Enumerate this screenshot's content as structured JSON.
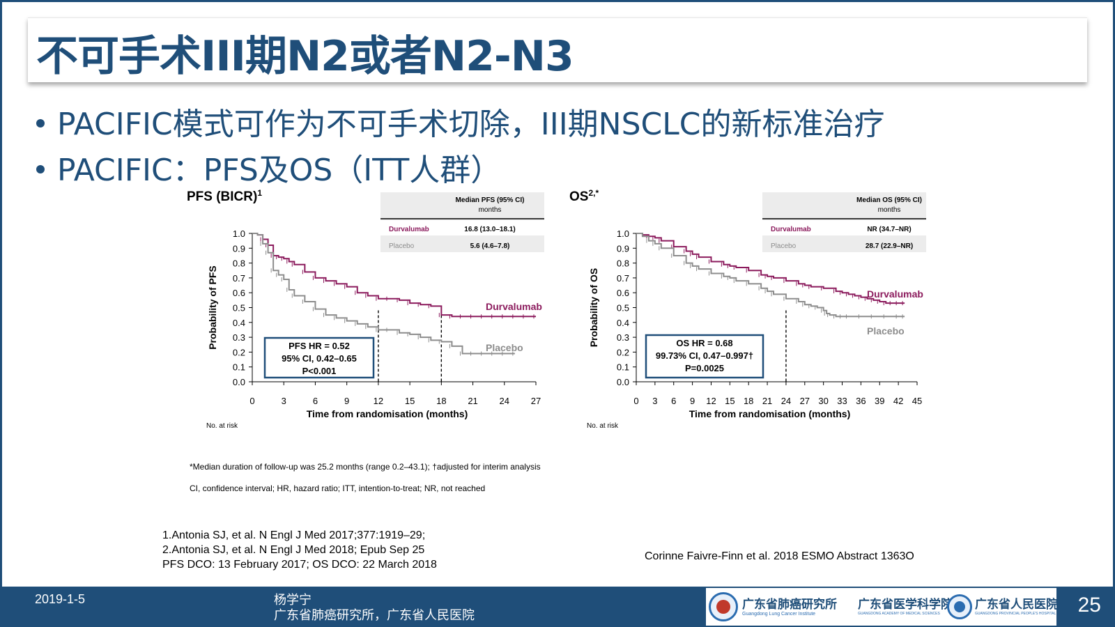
{
  "slide": {
    "title": "不可手术III期N2或者N2-N3",
    "bullets": [
      "PACIFIC模式可作为不可手术切除，III期NSCLC的新标准治疗",
      "PACIFIC：PFS及OS（ITT人群）"
    ],
    "footnote1": "*Median duration of follow-up was 25.2 months (range 0.2–43.1); †adjusted for interim analysis",
    "footnote2": "CI, confidence interval; HR, hazard ratio; ITT, intention-to-treat; NR, not reached",
    "references": [
      "1.Antonia SJ, et al. N Engl J Med 2017;377:1919–29;",
      "2.Antonia SJ, et al. N Engl J Med 2018; Epub Sep 25",
      "PFS DCO: 13 February 2017; OS DCO: 22 March 2018"
    ],
    "source": "Corinne Faivre-Finn et al. 2018 ESMO Abstract 1363O"
  },
  "footer": {
    "date": "2019-1-5",
    "author_line1": "杨学宁",
    "author_line2": "广东省肺癌研究所，广东省人民医院",
    "logo1_cn": "广东省肺癌研究所",
    "logo1_en": "Guangdong Lung Cancer Institute",
    "logo2_cn": "广东省医学科学院",
    "logo2_en": "GUANGDONG ACADEMY OF MEDICAL SCIENCES",
    "logo3_cn": "广东省人民医院",
    "logo3_en": "GUANGDONG PROVINCIAL PEOPLE'S HOSPITAL",
    "page": "25"
  },
  "colors": {
    "durvalumab": "#8b1a5c",
    "placebo": "#8c8c8c",
    "navy": "#1f4e79"
  },
  "chart_data": [
    {
      "type": "line",
      "title": "PFS (BICR)",
      "title_sup": "1",
      "xlabel": "Time from randomisation (months)",
      "ylabel": "Probability of PFS",
      "xlim": [
        0,
        27
      ],
      "ylim": [
        0,
        1
      ],
      "xticks": [
        "0",
        "3",
        "6",
        "9",
        "12",
        "15",
        "18",
        "21",
        "24",
        "27"
      ],
      "yticks": [
        "0.0",
        "0.1",
        "0.2",
        "0.3",
        "0.4",
        "0.5",
        "0.6",
        "0.7",
        "0.8",
        "0.9",
        "1.0"
      ],
      "at_risk_label": "No. at risk",
      "series": [
        {
          "name": "Durvalumab",
          "x": [
            0,
            0.5,
            1,
            1.5,
            2,
            2.5,
            3,
            3.5,
            4,
            5,
            6,
            7,
            8,
            9,
            10,
            11,
            12,
            13,
            14,
            15,
            16,
            17,
            18,
            19,
            20,
            21,
            22,
            23,
            24,
            25,
            26,
            27
          ],
          "y": [
            1.0,
            0.99,
            0.96,
            0.92,
            0.85,
            0.84,
            0.83,
            0.81,
            0.79,
            0.74,
            0.7,
            0.68,
            0.66,
            0.64,
            0.6,
            0.58,
            0.56,
            0.56,
            0.55,
            0.53,
            0.52,
            0.51,
            0.45,
            0.44,
            0.44,
            0.44,
            0.44,
            0.44,
            0.44,
            0.44,
            0.44,
            0.44
          ]
        },
        {
          "name": "Placebo",
          "x": [
            0,
            0.5,
            1,
            1.5,
            2,
            2.5,
            3,
            3.5,
            4,
            5,
            6,
            7,
            8,
            9,
            10,
            11,
            12,
            13,
            14,
            15,
            16,
            17,
            18,
            19,
            20,
            21,
            22,
            23,
            24,
            25
          ],
          "y": [
            1.0,
            0.99,
            0.93,
            0.87,
            0.75,
            0.72,
            0.69,
            0.62,
            0.58,
            0.54,
            0.49,
            0.45,
            0.43,
            0.41,
            0.39,
            0.37,
            0.35,
            0.35,
            0.33,
            0.32,
            0.3,
            0.28,
            0.27,
            0.24,
            0.19,
            0.19,
            0.19,
            0.19,
            0.19,
            0.19
          ]
        }
      ],
      "median_lines": [
        12,
        18
      ],
      "box": [
        "PFS HR = 0.52",
        "95% CI, 0.42–0.65",
        "P<0.001"
      ],
      "table": {
        "header": "Median PFS (95% CI)",
        "unit": "months",
        "rows": [
          {
            "arm": "Durvalumab",
            "value": "16.8 (13.0–18.1)"
          },
          {
            "arm": "Placebo",
            "value": "5.6 (4.6–7.8)"
          }
        ]
      }
    },
    {
      "type": "line",
      "title": "OS",
      "title_sup": "2,*",
      "xlabel": "Time from randomisation (months)",
      "ylabel": "Probability of OS",
      "xlim": [
        0,
        45
      ],
      "ylim": [
        0,
        1
      ],
      "xticks": [
        "0",
        "3",
        "6",
        "9",
        "12",
        "15",
        "18",
        "21",
        "24",
        "27",
        "30",
        "33",
        "36",
        "39",
        "42",
        "45"
      ],
      "yticks": [
        "0.0",
        "0.1",
        "0.2",
        "0.3",
        "0.4",
        "0.5",
        "0.6",
        "0.7",
        "0.8",
        "0.9",
        "1.0"
      ],
      "at_risk_label": "No. at risk",
      "series": [
        {
          "name": "Durvalumab",
          "x": [
            0,
            1,
            2,
            3,
            4,
            6,
            8,
            9,
            10,
            12,
            14,
            15,
            16,
            18,
            20,
            21,
            22,
            24,
            26,
            27,
            28,
            30,
            32,
            33,
            34,
            35,
            36,
            37,
            38,
            39,
            40,
            41,
            42,
            43
          ],
          "y": [
            1.0,
            0.99,
            0.98,
            0.97,
            0.95,
            0.91,
            0.88,
            0.86,
            0.84,
            0.81,
            0.79,
            0.78,
            0.77,
            0.75,
            0.72,
            0.71,
            0.7,
            0.68,
            0.66,
            0.65,
            0.64,
            0.63,
            0.61,
            0.6,
            0.59,
            0.58,
            0.57,
            0.56,
            0.55,
            0.54,
            0.53,
            0.53,
            0.53,
            0.53
          ]
        },
        {
          "name": "Placebo",
          "x": [
            0,
            1,
            2,
            3,
            4,
            6,
            8,
            9,
            10,
            12,
            14,
            15,
            16,
            18,
            20,
            21,
            22,
            24,
            26,
            27,
            28,
            29,
            30,
            30.5,
            31,
            32,
            33,
            34,
            36,
            38,
            40,
            42,
            43
          ],
          "y": [
            1.0,
            0.98,
            0.95,
            0.93,
            0.9,
            0.85,
            0.8,
            0.78,
            0.76,
            0.73,
            0.71,
            0.7,
            0.68,
            0.66,
            0.63,
            0.61,
            0.59,
            0.56,
            0.54,
            0.52,
            0.51,
            0.5,
            0.48,
            0.46,
            0.45,
            0.44,
            0.44,
            0.44,
            0.44,
            0.44,
            0.44,
            0.44,
            0.44
          ]
        }
      ],
      "median_lines": [
        24
      ],
      "box": [
        "OS HR = 0.68",
        "99.73% CI, 0.47–0.997†",
        "P=0.0025"
      ],
      "table": {
        "header": "Median OS (95% CI)",
        "unit": "months",
        "rows": [
          {
            "arm": "Durvalumab",
            "value": "NR (34.7–NR)"
          },
          {
            "arm": "Placebo",
            "value": "28.7 (22.9–NR)"
          }
        ]
      }
    }
  ]
}
